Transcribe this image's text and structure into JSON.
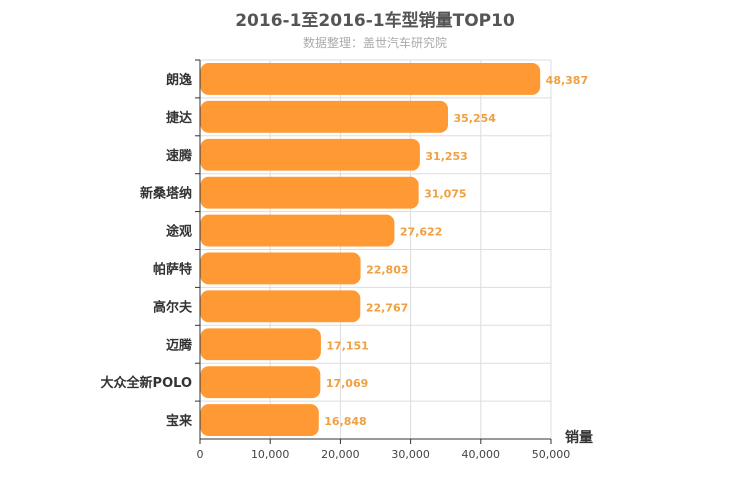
{
  "chart_data": {
    "type": "bar",
    "orientation": "horizontal",
    "title": "2016-1至2016-1车型销量TOP10",
    "subtitle": "数据整理：盖世汽车研究院",
    "xlabel": "销量",
    "xlim": [
      0,
      50000
    ],
    "xticks": [
      0,
      10000,
      20000,
      30000,
      40000,
      50000
    ],
    "xtick_labels": [
      "0",
      "10,000",
      "20,000",
      "30,000",
      "40,000",
      "50,000"
    ],
    "categories": [
      "朗逸",
      "捷达",
      "速腾",
      "新桑塔纳",
      "途观",
      "帕萨特",
      "高尔夫",
      "迈腾",
      "大众全新POLO",
      "宝来"
    ],
    "values": [
      48387,
      35254,
      31253,
      31075,
      27622,
      22803,
      22767,
      17151,
      17069,
      16848
    ],
    "value_labels": [
      "48,387",
      "35,254",
      "31,253",
      "31,075",
      "27,622",
      "22,803",
      "22,767",
      "17,151",
      "17,069",
      "16,848"
    ],
    "bar_color": "#ff9933",
    "value_label_color": "#f0a040",
    "grid": true
  }
}
